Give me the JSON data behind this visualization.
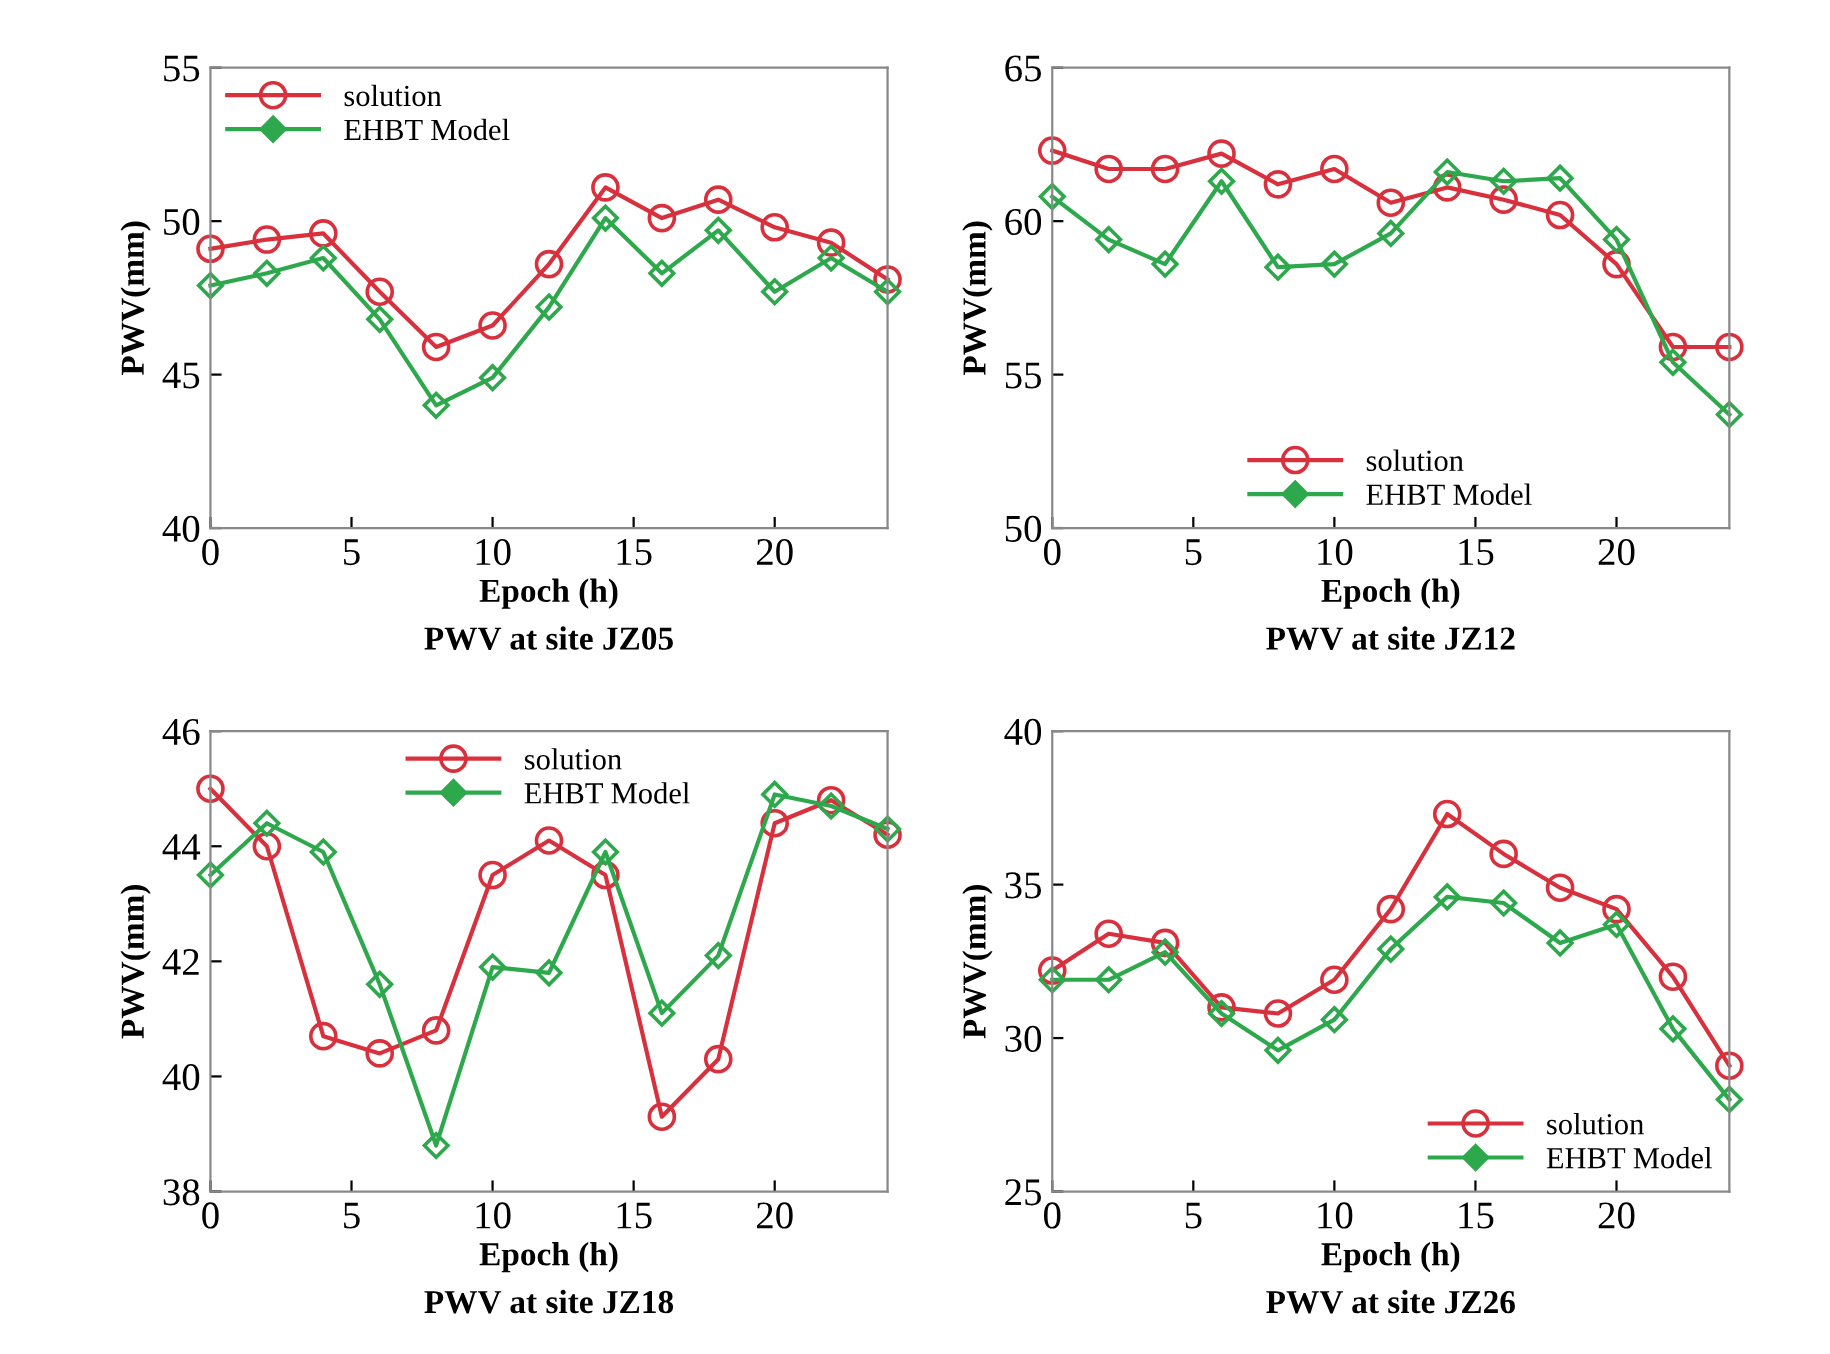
{
  "chart_data": [
    {
      "type": "line",
      "title": "PWV at site JZ05",
      "xlabel": "Epoch (h)",
      "ylabel": "PWV(mm)",
      "x": [
        0,
        2,
        4,
        6,
        8,
        10,
        12,
        14,
        16,
        18,
        20,
        22,
        24
      ],
      "xlim": [
        0,
        24
      ],
      "xticks": [
        0,
        5,
        10,
        15,
        20
      ],
      "ylim": [
        40,
        55
      ],
      "yticks": [
        40,
        45,
        50,
        55
      ],
      "grid": false,
      "legend": "top left",
      "series": [
        {
          "name": "solution",
          "color": "#d8303c",
          "marker": "circle",
          "values": [
            49.1,
            49.4,
            49.6,
            47.7,
            45.9,
            46.6,
            48.6,
            51.1,
            50.1,
            50.7,
            49.8,
            49.3,
            48.1
          ]
        },
        {
          "name": "EHBT Model",
          "color": "#2ea84c",
          "marker": "diamond",
          "values": [
            47.9,
            48.3,
            48.8,
            46.8,
            44.0,
            44.9,
            47.2,
            50.1,
            48.3,
            49.7,
            47.7,
            48.8,
            47.7
          ]
        }
      ]
    },
    {
      "type": "line",
      "title": "PWV at site JZ12",
      "xlabel": "Epoch (h)",
      "ylabel": "PWV(mm)",
      "x": [
        0,
        2,
        4,
        6,
        8,
        10,
        12,
        14,
        16,
        18,
        20,
        22,
        24
      ],
      "xlim": [
        0,
        24
      ],
      "xticks": [
        0,
        5,
        10,
        15,
        20
      ],
      "ylim": [
        50,
        65
      ],
      "yticks": [
        50,
        55,
        60,
        65
      ],
      "grid": false,
      "legend": "bottom",
      "series": [
        {
          "name": "solution",
          "color": "#d8303c",
          "marker": "circle",
          "values": [
            62.3,
            61.7,
            61.7,
            62.2,
            61.2,
            61.7,
            60.6,
            61.1,
            60.7,
            60.2,
            58.6,
            55.9,
            55.9
          ]
        },
        {
          "name": "EHBT Model",
          "color": "#2ea84c",
          "marker": "diamond",
          "values": [
            60.8,
            59.4,
            58.6,
            61.3,
            58.5,
            58.6,
            59.6,
            61.6,
            61.3,
            61.4,
            59.4,
            55.4,
            53.7
          ]
        }
      ]
    },
    {
      "type": "line",
      "title": "PWV at site JZ18",
      "xlabel": "Epoch (h)",
      "ylabel": "PWV(mm)",
      "x": [
        0,
        2,
        4,
        6,
        8,
        10,
        12,
        14,
        16,
        18,
        20,
        22,
        24
      ],
      "xlim": [
        0,
        24
      ],
      "xticks": [
        0,
        5,
        10,
        15,
        20
      ],
      "ylim": [
        38,
        46
      ],
      "yticks": [
        38,
        40,
        42,
        44,
        46
      ],
      "grid": false,
      "legend": "top",
      "series": [
        {
          "name": "solution",
          "color": "#d8303c",
          "marker": "circle",
          "values": [
            45.0,
            44.0,
            40.7,
            40.4,
            40.8,
            43.5,
            44.1,
            43.5,
            39.3,
            40.3,
            44.4,
            44.8,
            44.2
          ]
        },
        {
          "name": "EHBT Model",
          "color": "#2ea84c",
          "marker": "diamond",
          "values": [
            43.5,
            44.4,
            43.9,
            41.6,
            38.8,
            41.9,
            41.8,
            43.9,
            41.1,
            42.1,
            44.9,
            44.7,
            44.3
          ]
        }
      ]
    },
    {
      "type": "line",
      "title": "PWV at site JZ26",
      "xlabel": "Epoch (h)",
      "ylabel": "PWV(mm)",
      "x": [
        0,
        2,
        4,
        6,
        8,
        10,
        12,
        14,
        16,
        18,
        20,
        22,
        24
      ],
      "xlim": [
        0,
        24
      ],
      "xticks": [
        0,
        5,
        10,
        15,
        20
      ],
      "ylim": [
        25,
        40
      ],
      "yticks": [
        25,
        30,
        35,
        40
      ],
      "grid": false,
      "legend": "bottom right",
      "series": [
        {
          "name": "solution",
          "color": "#d8303c",
          "marker": "circle",
          "values": [
            32.2,
            33.4,
            33.1,
            31.0,
            30.8,
            31.9,
            34.2,
            37.3,
            36.0,
            34.9,
            34.2,
            32.0,
            29.1
          ]
        },
        {
          "name": "EHBT Model",
          "color": "#2ea84c",
          "marker": "diamond",
          "values": [
            31.9,
            31.9,
            32.8,
            30.8,
            29.6,
            30.6,
            32.9,
            34.6,
            34.4,
            33.1,
            33.7,
            30.3,
            28.0
          ]
        }
      ]
    }
  ]
}
